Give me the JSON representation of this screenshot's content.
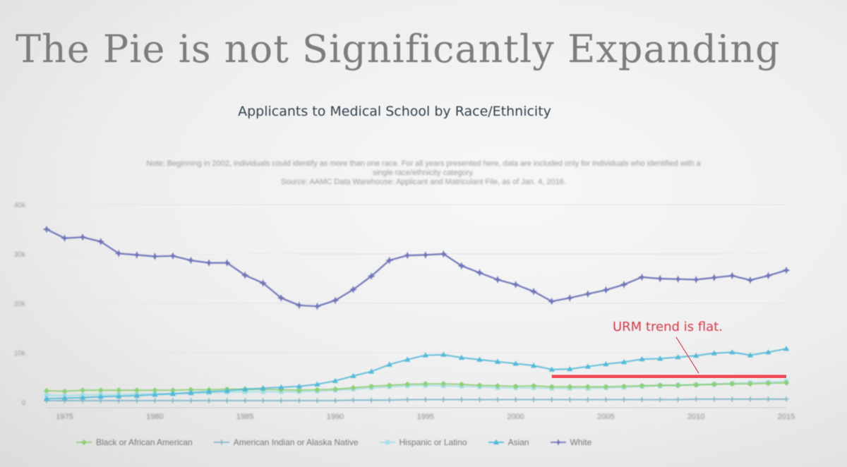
{
  "slide": {
    "title": "The Pie is not Significantly Expanding"
  },
  "chart_data": {
    "type": "line",
    "title": "Applicants to Medical School by Race/Ethnicity",
    "note_line1": "Note: Beginning in 2002, individuals could identify as more than one race. For all years presented here, data are included only for individuals who identified with a",
    "note_line2": "single race/ethnicity category.",
    "source": "Source: AAMC Data Warehouse: Applicant and Matriculant File, as of Jan. 4, 2016.",
    "annotation": "URM trend is flat.",
    "xlim": [
      1974,
      2015
    ],
    "ylim": [
      0,
      40000
    ],
    "x_ticks": [
      1975,
      1980,
      1985,
      1990,
      1995,
      2000,
      2005,
      2010,
      2015
    ],
    "x_tick_labels": [
      "1975",
      "1980",
      "1985",
      "1990",
      "1995",
      "2000",
      "2005",
      "2010",
      "2015"
    ],
    "y_ticks": [
      0,
      10000,
      20000,
      30000,
      40000
    ],
    "y_tick_labels": [
      "0",
      "10k",
      "20k",
      "30k",
      "40k"
    ],
    "x": [
      1974,
      1975,
      1976,
      1977,
      1978,
      1979,
      1980,
      1981,
      1982,
      1983,
      1984,
      1985,
      1986,
      1987,
      1988,
      1989,
      1990,
      1991,
      1992,
      1993,
      1994,
      1995,
      1996,
      1997,
      1998,
      1999,
      2000,
      2001,
      2002,
      2003,
      2004,
      2005,
      2006,
      2007,
      2008,
      2009,
      2010,
      2011,
      2012,
      2013,
      2014,
      2015
    ],
    "series": [
      {
        "name": "Black or African American",
        "color": "#8dcf76",
        "marker": "diamond",
        "values": [
          2300,
          2200,
          2400,
          2400,
          2400,
          2400,
          2400,
          2400,
          2500,
          2500,
          2600,
          2600,
          2600,
          2500,
          2400,
          2500,
          2600,
          2900,
          3200,
          3400,
          3600,
          3700,
          3700,
          3600,
          3400,
          3300,
          3200,
          3300,
          3100,
          3100,
          3100,
          3100,
          3200,
          3300,
          3400,
          3400,
          3500,
          3600,
          3700,
          3700,
          3800,
          3900
        ]
      },
      {
        "name": "American Indian or Alaska Native",
        "color": "#7fb6c9",
        "marker": "plus",
        "values": [
          300,
          300,
          300,
          300,
          300,
          300,
          300,
          300,
          300,
          300,
          300,
          300,
          300,
          300,
          300,
          300,
          300,
          400,
          400,
          400,
          500,
          500,
          500,
          500,
          500,
          500,
          500,
          500,
          500,
          500,
          500,
          500,
          500,
          500,
          500,
          500,
          600,
          600,
          600,
          600,
          600,
          600
        ]
      },
      {
        "name": "Hispanic or Latino",
        "color": "#a5dfe7",
        "marker": "square",
        "values": [
          1400,
          1300,
          1400,
          1500,
          1500,
          1600,
          1700,
          1700,
          1800,
          1900,
          2000,
          2100,
          2100,
          2100,
          2100,
          2200,
          2400,
          2600,
          2900,
          3100,
          3300,
          3400,
          3300,
          3200,
          3100,
          2900,
          2900,
          2900,
          2800,
          2800,
          2800,
          2900,
          3000,
          3200,
          3300,
          3400,
          3500,
          3600,
          3800,
          3900,
          4000,
          4200
        ]
      },
      {
        "name": "Asian",
        "color": "#51b9d9",
        "marker": "triangle",
        "values": [
          700,
          800,
          900,
          1100,
          1200,
          1300,
          1500,
          1700,
          1900,
          2100,
          2300,
          2600,
          2800,
          3000,
          3200,
          3600,
          4300,
          5300,
          6200,
          7600,
          8600,
          9500,
          9600,
          9000,
          8600,
          8200,
          7800,
          7400,
          6600,
          6700,
          7200,
          7700,
          8100,
          8700,
          8800,
          9100,
          9400,
          9900,
          10100,
          9500,
          10100,
          10800
        ]
      },
      {
        "name": "White",
        "color": "#6e74b8",
        "marker": "star",
        "values": [
          35000,
          33200,
          33400,
          32500,
          30100,
          29800,
          29500,
          29600,
          28700,
          28200,
          28200,
          25700,
          24100,
          21100,
          19600,
          19400,
          20600,
          22800,
          25500,
          28700,
          29700,
          29800,
          30000,
          27600,
          26200,
          24800,
          23800,
          22400,
          20400,
          21100,
          21900,
          22700,
          23800,
          25300,
          25000,
          24900,
          24800,
          25200,
          25600,
          24700,
          25600,
          26700
        ]
      }
    ],
    "reference_line": {
      "x_start": 2002,
      "x_end": 2015,
      "value": 5200,
      "color": "#f04a58"
    }
  }
}
